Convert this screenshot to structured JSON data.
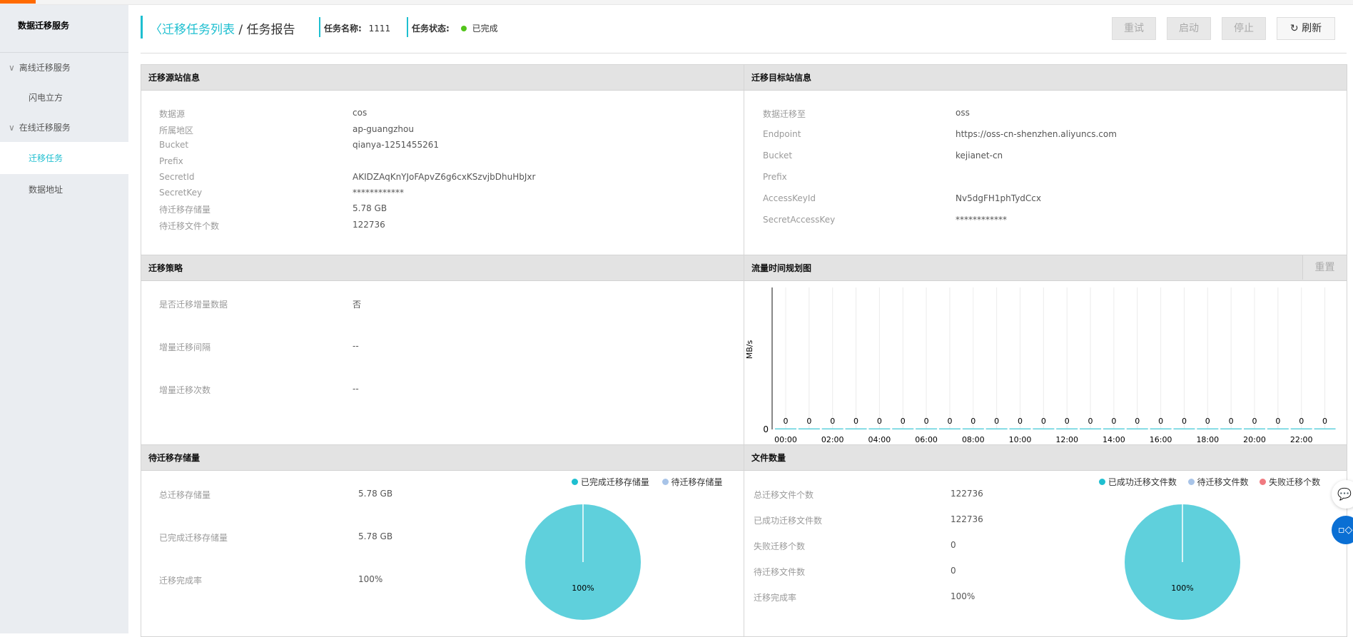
{
  "sidebar": {
    "title": "数据迁移服务",
    "groups": [
      {
        "label": "离线迁移服务",
        "items": [
          "闪电立方"
        ]
      },
      {
        "label": "在线迁移服务",
        "items": [
          "迁移任务",
          "数据地址"
        ]
      }
    ]
  },
  "header": {
    "back_link": "迁移任务列表",
    "separator": "/",
    "current": "任务报告",
    "task_name_label": "任务名称:",
    "task_name": "1111",
    "task_status_label": "任务状态:",
    "task_status": "已完成",
    "status_color": "#52c41a"
  },
  "buttons": {
    "retry": "重试",
    "start": "启动",
    "stop": "停止",
    "refresh": "刷新"
  },
  "source": {
    "title": "迁移源站信息",
    "rows": [
      [
        "数据源",
        "cos"
      ],
      [
        "所属地区",
        "ap-guangzhou"
      ],
      [
        "Bucket",
        "qianya-1251455261"
      ],
      [
        "Prefix",
        ""
      ],
      [
        "SecretId",
        "AKIDZAqKnYJoFApvZ6g6cxKSzvjbDhuHbJxr"
      ],
      [
        "SecretKey",
        "************"
      ],
      [
        "待迁移存储量",
        "5.78 GB"
      ],
      [
        "待迁移文件个数",
        "122736"
      ]
    ]
  },
  "target": {
    "title": "迁移目标站信息",
    "rows": [
      [
        "数据迁移至",
        "oss"
      ],
      [
        "Endpoint",
        "https://oss-cn-shenzhen.aliyuncs.com"
      ],
      [
        "Bucket",
        "kejianet-cn"
      ],
      [
        "Prefix",
        ""
      ],
      [
        "AccessKeyId",
        "Nv5dgFH1phTydCcx"
      ],
      [
        "SecretAccessKey",
        "************"
      ]
    ]
  },
  "strategy": {
    "title": "迁移策略",
    "rows": [
      [
        "是否迁移增量数据",
        "否"
      ],
      [
        "增量迁移间隔",
        "--"
      ],
      [
        "增量迁移次数",
        "--"
      ]
    ]
  },
  "traffic": {
    "title": "流量时间规划图",
    "reset": "重置"
  },
  "storage": {
    "title": "待迁移存储量",
    "rows": [
      [
        "总迁移存储量",
        "5.78 GB"
      ],
      [
        "已完成迁移存储量",
        "5.78 GB"
      ],
      [
        "迁移完成率",
        "100%"
      ]
    ],
    "legend": [
      "已完成迁移存储量",
      "待迁移存储量"
    ],
    "pie_label": "100%"
  },
  "files": {
    "title": "文件数量",
    "rows": [
      [
        "总迁移文件个数",
        "122736"
      ],
      [
        "已成功迁移文件数",
        "122736"
      ],
      [
        "失败迁移个数",
        "0"
      ],
      [
        "待迁移文件数",
        "0"
      ],
      [
        "迁移完成率",
        "100%"
      ]
    ],
    "legend": [
      "已成功迁移文件数",
      "待迁移文件数",
      "失败迁移个数"
    ],
    "pie_label": "100%"
  },
  "colors": {
    "accent": "#1ebfd0",
    "pie": "#5fd0dc",
    "pending": "#a8c4e8",
    "failed": "#f07a80"
  },
  "chart_data": {
    "type": "bar",
    "title": "流量时间规划图",
    "ylabel": "MB/s",
    "xlabel": "",
    "ylim": [
      0,
      1
    ],
    "y_ticks": [
      "0"
    ],
    "categories": [
      "00:00",
      "01:00",
      "02:00",
      "03:00",
      "04:00",
      "05:00",
      "06:00",
      "07:00",
      "08:00",
      "09:00",
      "10:00",
      "11:00",
      "12:00",
      "13:00",
      "14:00",
      "15:00",
      "16:00",
      "17:00",
      "18:00",
      "19:00",
      "20:00",
      "21:00",
      "22:00",
      "23:00"
    ],
    "x_tick_labels": [
      "00:00",
      "02:00",
      "04:00",
      "06:00",
      "08:00",
      "10:00",
      "12:00",
      "14:00",
      "16:00",
      "18:00",
      "20:00",
      "22:00"
    ],
    "values": [
      0,
      0,
      0,
      0,
      0,
      0,
      0,
      0,
      0,
      0,
      0,
      0,
      0,
      0,
      0,
      0,
      0,
      0,
      0,
      0,
      0,
      0,
      0,
      0
    ]
  }
}
